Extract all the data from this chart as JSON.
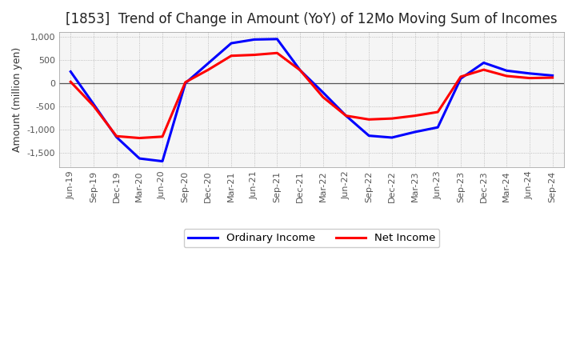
{
  "title": "[1853]  Trend of Change in Amount (YoY) of 12Mo Moving Sum of Incomes",
  "ylabel": "Amount (million yen)",
  "x_labels": [
    "Jun-19",
    "Sep-19",
    "Dec-19",
    "Mar-20",
    "Jun-20",
    "Sep-20",
    "Dec-20",
    "Mar-21",
    "Jun-21",
    "Sep-21",
    "Dec-21",
    "Mar-22",
    "Jun-22",
    "Sep-22",
    "Dec-22",
    "Mar-23",
    "Jun-23",
    "Sep-23",
    "Dec-23",
    "Mar-24",
    "Jun-24",
    "Sep-24"
  ],
  "ordinary_income": [
    250,
    -450,
    -1160,
    -1620,
    -1680,
    0,
    430,
    860,
    940,
    950,
    280,
    -200,
    -700,
    -1130,
    -1170,
    -1050,
    -950,
    100,
    440,
    270,
    210,
    165
  ],
  "net_income": [
    30,
    -490,
    -1140,
    -1180,
    -1150,
    20,
    290,
    590,
    610,
    650,
    280,
    -300,
    -700,
    -780,
    -760,
    -700,
    -620,
    140,
    290,
    155,
    110,
    120
  ],
  "ordinary_color": "#0000ff",
  "net_color": "#ff0000",
  "bg_color": "#ffffff",
  "plot_bg_color": "#f5f5f5",
  "ylim": [
    -1800,
    1100
  ],
  "yticks": [
    -1500,
    -1000,
    -500,
    0,
    500,
    1000
  ],
  "line_width": 2.2,
  "title_fontsize": 12,
  "legend_labels": [
    "Ordinary Income",
    "Net Income"
  ],
  "grid_color": "#aaaaaa",
  "zero_line_color": "#555555"
}
